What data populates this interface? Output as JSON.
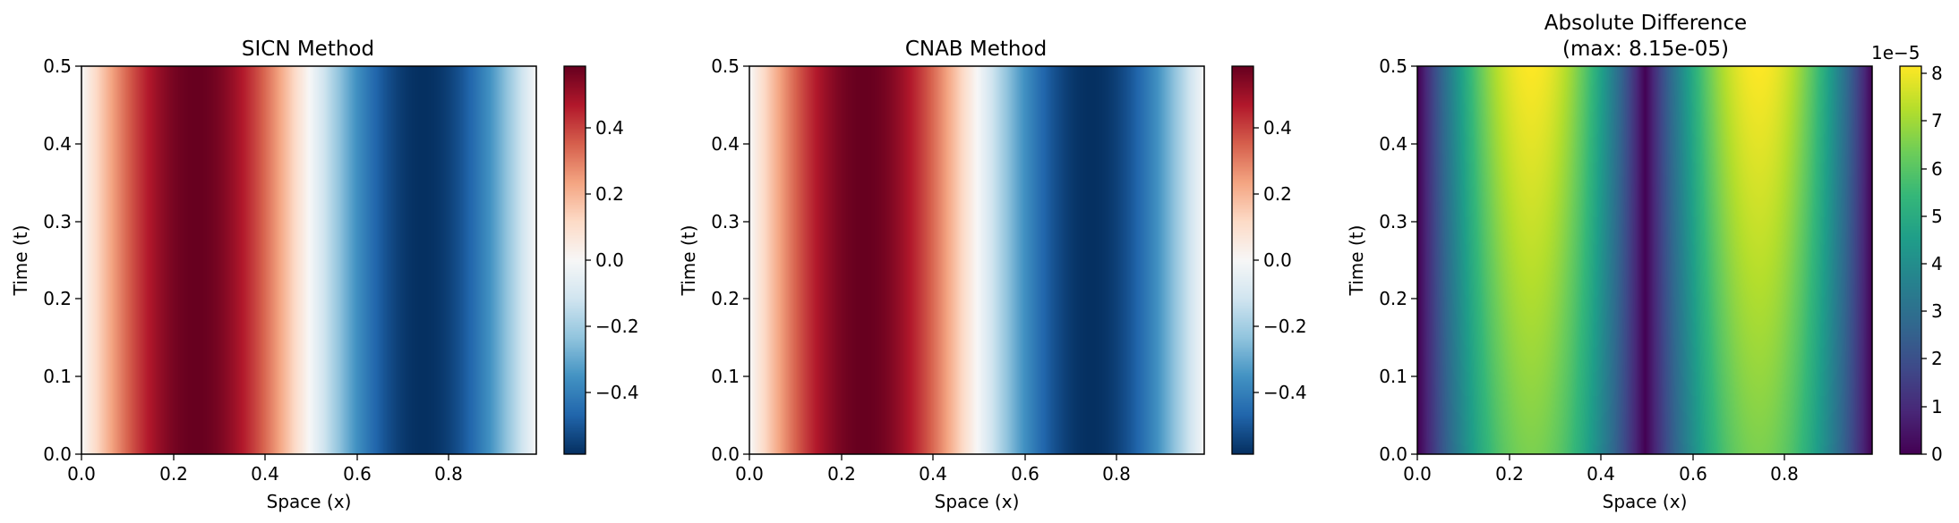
{
  "chart_data": [
    {
      "type": "heatmap",
      "title": "SICN Method",
      "xlabel": "Space (x)",
      "ylabel": "Time (t)",
      "xlim": [
        0.0,
        1.0
      ],
      "ylim": [
        0.0,
        0.5
      ],
      "x_ticks": [
        "0.0",
        "0.2",
        "0.4",
        "0.6",
        "0.8"
      ],
      "y_ticks": [
        "0.0",
        "0.1",
        "0.2",
        "0.3",
        "0.4",
        "0.5"
      ],
      "field": "0.58*sin(2*pi*x), constant in t",
      "colormap": "RdBu_r",
      "color_range": [
        -0.58,
        0.58
      ],
      "colorbar_ticks": [
        "0.4",
        "0.2",
        "0.0",
        "−0.2",
        "−0.4"
      ],
      "colorbar_tick_values": [
        0.4,
        0.2,
        0.0,
        -0.2,
        -0.4
      ]
    },
    {
      "type": "heatmap",
      "title": "CNAB Method",
      "xlabel": "Space (x)",
      "ylabel": "Time (t)",
      "xlim": [
        0.0,
        1.0
      ],
      "ylim": [
        0.0,
        0.5
      ],
      "x_ticks": [
        "0.0",
        "0.2",
        "0.4",
        "0.6",
        "0.8"
      ],
      "y_ticks": [
        "0.0",
        "0.1",
        "0.2",
        "0.3",
        "0.4",
        "0.5"
      ],
      "field": "0.58*sin(2*pi*x), constant in t",
      "colormap": "RdBu_r",
      "color_range": [
        -0.58,
        0.58
      ],
      "colorbar_ticks": [
        "0.4",
        "0.2",
        "0.0",
        "−0.2",
        "−0.4"
      ],
      "colorbar_tick_values": [
        0.4,
        0.2,
        0.0,
        -0.2,
        -0.4
      ]
    },
    {
      "type": "heatmap",
      "title": "Absolute Difference",
      "subtitle": "(max: 8.15e-05)",
      "xlabel": "Space (x)",
      "ylabel": "Time (t)",
      "xlim": [
        0.0,
        1.0
      ],
      "ylim": [
        0.0,
        0.5
      ],
      "x_ticks": [
        "0.0",
        "0.2",
        "0.4",
        "0.6",
        "0.8"
      ],
      "y_ticks": [
        "0.0",
        "0.1",
        "0.2",
        "0.3",
        "0.4",
        "0.5"
      ],
      "field": "|sin(2*pi*x)| * 8.15e-05 * (0.80 + 0.20*t/0.5)",
      "max": 8.15e-05,
      "colormap": "viridis",
      "color_range": [
        0,
        8.15
      ],
      "colorbar_ticks": [
        "8",
        "7",
        "6",
        "5",
        "4",
        "3",
        "2",
        "1",
        "0"
      ],
      "colorbar_tick_values": [
        8,
        7,
        6,
        5,
        4,
        3,
        2,
        1,
        0
      ],
      "colorbar_offset_text": "1e−5"
    }
  ]
}
